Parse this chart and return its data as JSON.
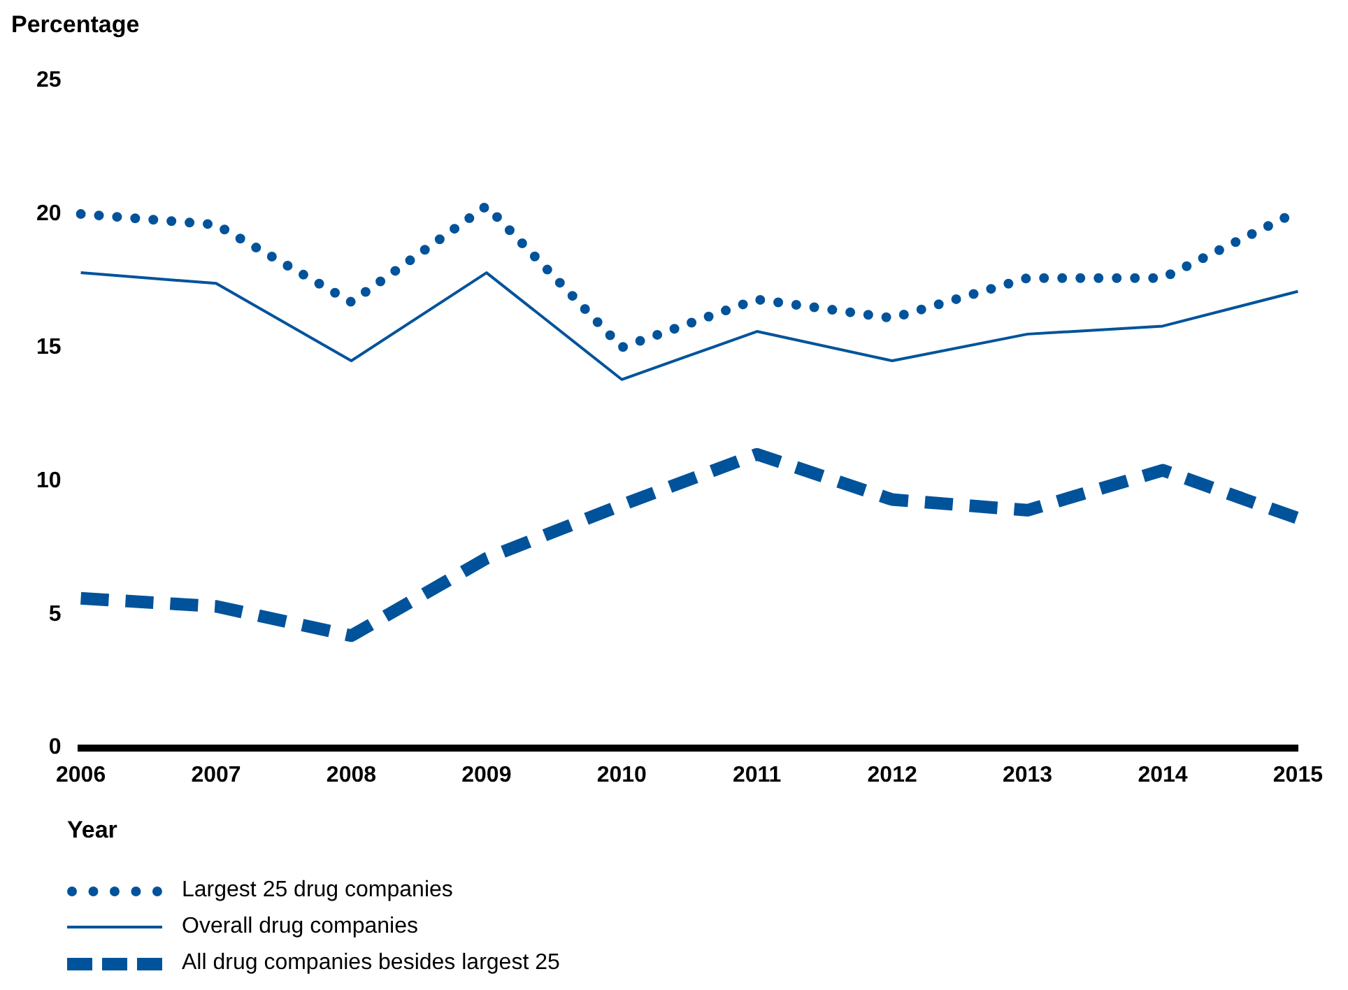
{
  "chart_data": {
    "type": "line",
    "ylabel": "Percentage",
    "xlabel": "Year",
    "categories": [
      "2006",
      "2007",
      "2008",
      "2009",
      "2010",
      "2011",
      "2012",
      "2013",
      "2014",
      "2015"
    ],
    "series": [
      {
        "name": "Largest 25 drug companies",
        "color": "#00539b",
        "line_style": "dotted",
        "values": [
          20.0,
          19.6,
          16.7,
          20.3,
          15.0,
          16.8,
          16.1,
          17.6,
          17.6,
          20.1
        ]
      },
      {
        "name": "Overall drug companies",
        "color": "#00539b",
        "line_style": "solid",
        "values": [
          17.8,
          17.4,
          14.5,
          17.8,
          13.8,
          15.6,
          14.5,
          15.5,
          15.8,
          17.1
        ]
      },
      {
        "name": "All drug companies besides largest 25",
        "color": "#00539b",
        "line_style": "dashed",
        "values": [
          5.6,
          5.3,
          4.2,
          7.1,
          9.1,
          11.0,
          9.3,
          8.9,
          10.4,
          8.6
        ]
      }
    ],
    "ylim": [
      0,
      25
    ],
    "yticks": [
      0,
      5,
      10,
      15,
      20,
      25
    ],
    "grid": false,
    "legend": "bottom",
    "marker": "none"
  }
}
